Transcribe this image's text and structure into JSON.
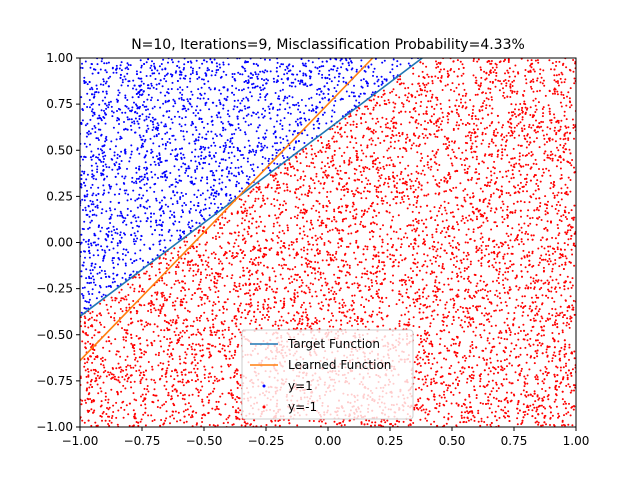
{
  "chart_data": {
    "type": "scatter",
    "title": "N=10, Iterations=9, Misclassification Probability=4.33%",
    "xlabel": "",
    "ylabel": "",
    "xlim": [
      -1.0,
      1.0
    ],
    "ylim": [
      -1.0,
      1.0
    ],
    "x_ticks": [
      -1.0,
      -0.75,
      -0.5,
      -0.25,
      0.0,
      0.25,
      0.5,
      0.75,
      1.0
    ],
    "x_tick_labels": [
      "−1.00",
      "−0.75",
      "−0.50",
      "−0.25",
      "0.00",
      "0.25",
      "0.50",
      "0.75",
      "1.00"
    ],
    "y_ticks": [
      -1.0,
      -0.75,
      -0.5,
      -0.25,
      0.0,
      0.25,
      0.5,
      0.75,
      1.0
    ],
    "y_tick_labels": [
      "−1.00",
      "−0.75",
      "−0.50",
      "−0.25",
      "0.00",
      "0.25",
      "0.50",
      "0.75",
      "1.00"
    ],
    "grid": false,
    "legend_position": "lower-center",
    "series": [
      {
        "name": "Target Function",
        "kind": "line",
        "color": "#1f77b4",
        "x": [
          -1.0,
          0.38
        ],
        "y": [
          -0.4,
          1.0
        ]
      },
      {
        "name": "Learned Function",
        "kind": "line",
        "color": "#ff7f0e",
        "x": [
          -1.0,
          0.18
        ],
        "y": [
          -0.64,
          1.0
        ]
      },
      {
        "name": "y=1",
        "kind": "scatter",
        "color": "#0000ff",
        "region": "above target line"
      },
      {
        "name": "y=-1",
        "kind": "scatter",
        "color": "#ff0000",
        "region": "below target line"
      }
    ]
  }
}
